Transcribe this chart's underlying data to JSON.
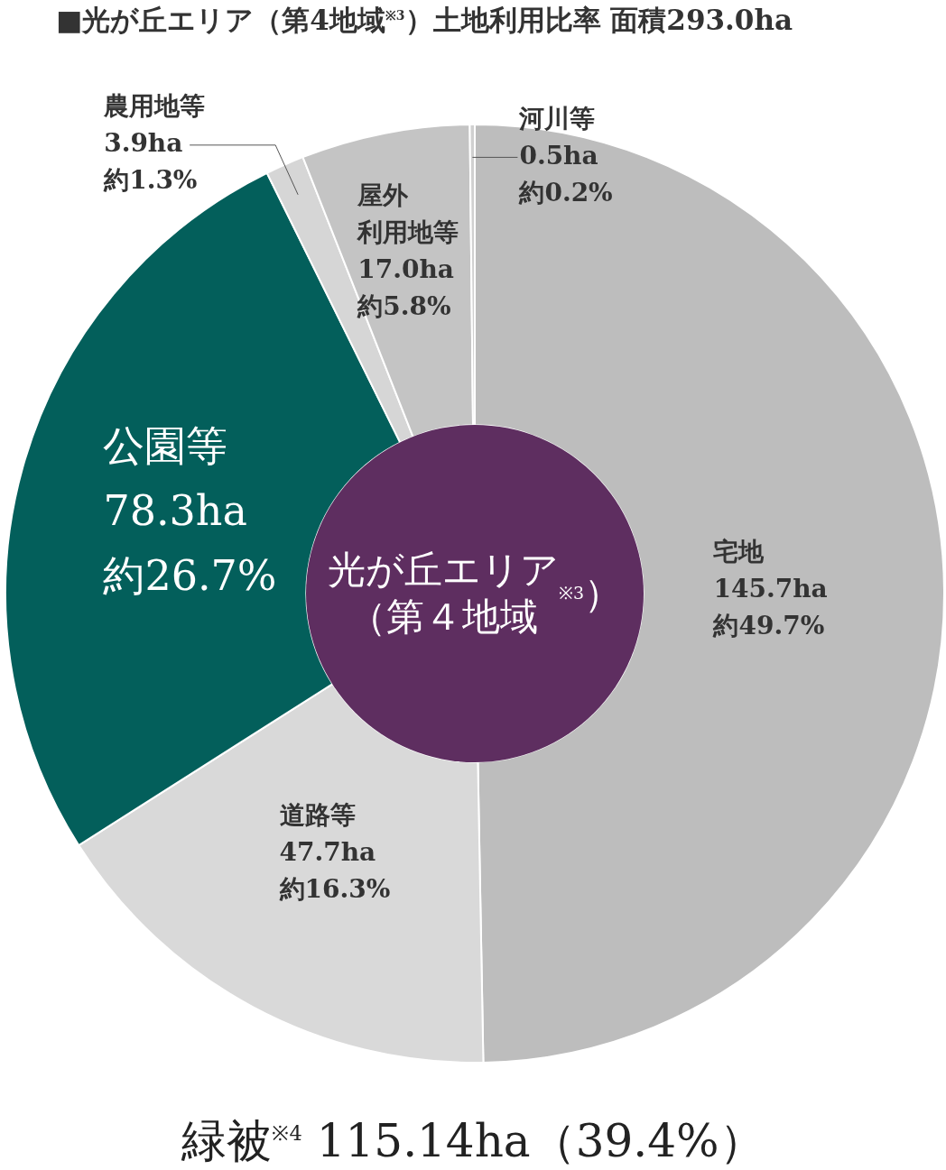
{
  "chart_data": {
    "type": "donut",
    "title": "■光が丘エリア（第4地域$^{※3}$）土地利用比率 面積293.0ha",
    "categories": [
      "宅地",
      "道路等",
      "公園等",
      "農用地等",
      "屋外利用地等",
      "河川等"
    ],
    "values": [
      145.7,
      47.7,
      78.3,
      3.9,
      17.0,
      0.5
    ],
    "colors": [
      "#bdbdbd",
      "#d9d9d9",
      "#035f5b",
      "#d6d6d6",
      "#c4c4c4",
      "#d0d0d0"
    ],
    "value_labels": [
      "145.7ha\n約49.7%",
      "47.7ha\n約16.3%",
      "78.3ha\n約26.7%",
      "3.9ha\n約1.3%",
      "17.0ha\n約5.8%",
      "0.5ha\n約0.2%"
    ],
    "annotations": [
      "光が丘エリア（第４地域$^{※3}$）",
      "緑被$^{※4}$ 115.14ha（39.4%）"
    ],
    "legend": false
  }
}
